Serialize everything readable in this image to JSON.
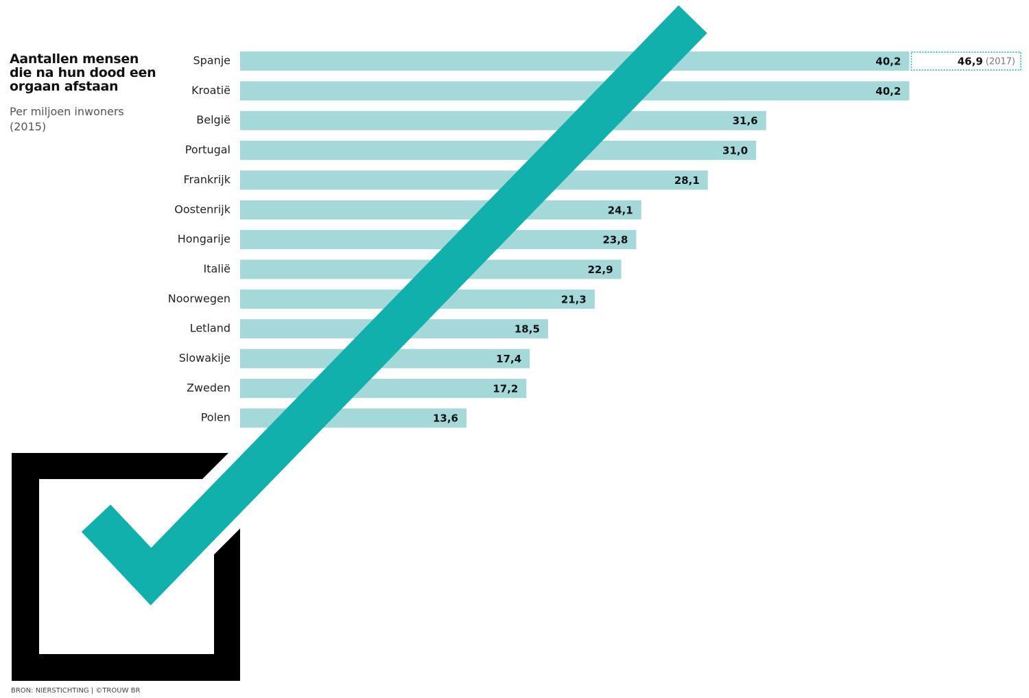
{
  "chart_data": {
    "type": "bar",
    "orientation": "horizontal",
    "title": "Aantallen mensen die na hun dood een orgaan afstaan",
    "subtitle": "Per miljoen inwoners (2015)",
    "source": "BRON: NIERSTICHTING | ©TROUW BR",
    "categories": [
      "Spanje",
      "Kroatië",
      "België",
      "Portugal",
      "Frankrijk",
      "Oostenrijk",
      "Hongarije",
      "Italië",
      "Noorwegen",
      "Letland",
      "Slowakije",
      "Zweden",
      "Polen"
    ],
    "values": [
      40.2,
      40.2,
      31.6,
      31.0,
      28.1,
      24.1,
      23.8,
      22.9,
      21.3,
      18.5,
      17.4,
      17.2,
      13.6
    ],
    "value_labels": [
      "40,2",
      "40,2",
      "31,6",
      "31,0",
      "28,1",
      "24,1",
      "23,8",
      "22,9",
      "21,3",
      "18,5",
      "17,4",
      "17,2",
      "13,6"
    ],
    "color": "#a5d8d9",
    "annotation": {
      "value": 46.9,
      "value_label": "46,9",
      "label": "(2017)"
    }
  }
}
